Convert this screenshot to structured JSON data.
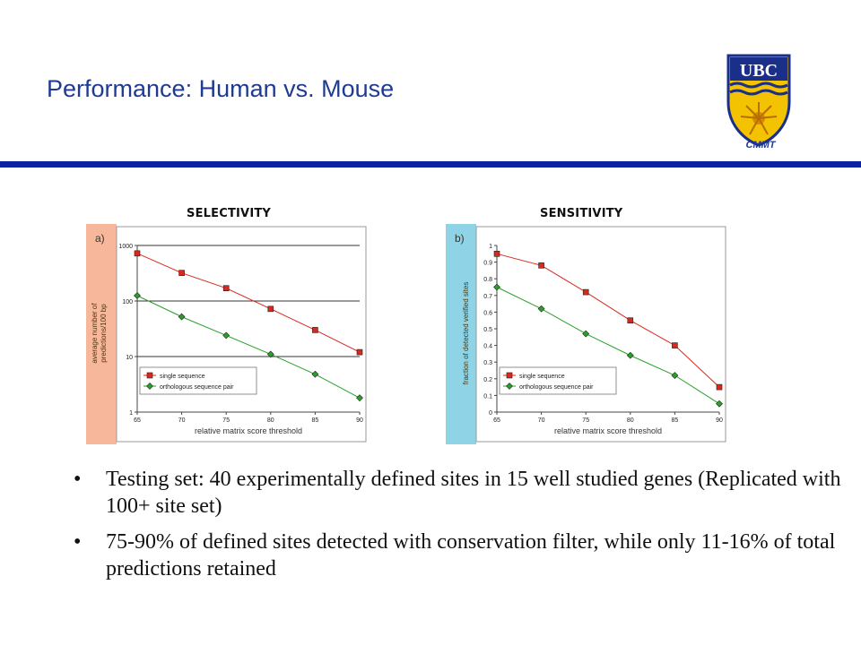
{
  "slide": {
    "title": "Performance: Human vs. Mouse",
    "logo_text": "UBC",
    "logo_caption": "CMMT"
  },
  "colors": {
    "title": "#1f3a93",
    "rule": "#0b22a3",
    "single_series": "#d9281e",
    "ortholog_series": "#2aa02a",
    "selectivity_strip": "#f7b79a",
    "sensitivity_strip": "#8fd3e6"
  },
  "chart_data": [
    {
      "type": "line",
      "heading": "SELECTIVITY",
      "panel_label": "a)",
      "xlabel": "relative matrix score threshold",
      "ylabel": [
        "average number of",
        "predictions/100 bp"
      ],
      "x": [
        65,
        70,
        75,
        80,
        85,
        90
      ],
      "xlim": [
        65,
        90
      ],
      "yscale": "log",
      "ylim": [
        1,
        1000
      ],
      "yticks": [
        1,
        10,
        100,
        1000
      ],
      "grid": true,
      "legend_position": "bottom-left",
      "series": [
        {
          "name": "single sequence",
          "marker": "square",
          "values": [
            720,
            320,
            170,
            72,
            30,
            12
          ]
        },
        {
          "name": "orthologous sequence pair",
          "marker": "diamond",
          "values": [
            125,
            52,
            24,
            11,
            4.8,
            1.8
          ]
        }
      ]
    },
    {
      "type": "line",
      "heading": "SENSITIVITY",
      "panel_label": "b)",
      "xlabel": "relative matrix score threshold",
      "ylabel": [
        "fraction of detected verified sites"
      ],
      "x": [
        65,
        70,
        75,
        80,
        85,
        90
      ],
      "xlim": [
        65,
        90
      ],
      "yscale": "linear",
      "ylim": [
        0,
        1
      ],
      "yticks": [
        0,
        0.1,
        0.2,
        0.3,
        0.4,
        0.5,
        0.6,
        0.7,
        0.8,
        0.9,
        1
      ],
      "grid": false,
      "legend_position": "bottom-left",
      "series": [
        {
          "name": "single sequence",
          "marker": "square",
          "values": [
            0.95,
            0.88,
            0.72,
            0.55,
            0.4,
            0.15
          ]
        },
        {
          "name": "orthologous sequence pair",
          "marker": "diamond",
          "values": [
            0.75,
            0.62,
            0.47,
            0.34,
            0.22,
            0.05
          ]
        }
      ]
    }
  ],
  "bullets": [
    "Testing set: 40 experimentally defined sites in 15 well studied genes (Replicated with 100+ site set)",
    "75-90% of defined sites detected with conservation filter, while only 11-16% of total predictions retained"
  ],
  "bullet_glyph": "•"
}
